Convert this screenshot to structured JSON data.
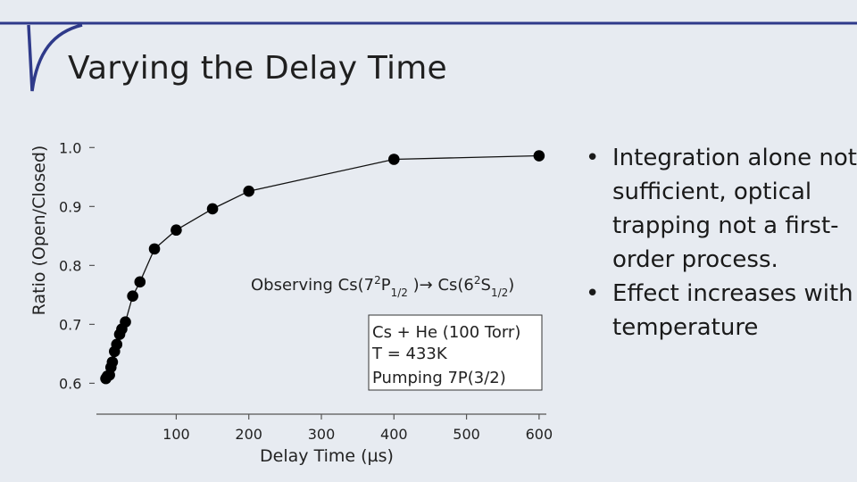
{
  "slide": {
    "title": "Varying the Delay Time",
    "accent_color": "#2f3a8a",
    "background": "#e7ebf1"
  },
  "bullets": [
    {
      "text": "Integration alone not sufficient, optical trapping not a first-order process."
    },
    {
      "text": "Effect increases with temperature"
    }
  ],
  "chart_data": {
    "type": "scatter",
    "title": "",
    "xlabel": "Delay Time (µs)",
    "ylabel": "Ratio (Open/Closed)",
    "xlim": [
      -10,
      610
    ],
    "ylim": [
      0.59,
      1.005
    ],
    "xticks": [
      100,
      200,
      300,
      400,
      500,
      600
    ],
    "yticks": [
      0.6,
      0.7,
      0.8,
      0.9,
      1.0
    ],
    "ytick_labels": [
      "0.6",
      "0.7",
      "0.8",
      "0.9",
      "1.0"
    ],
    "grid": false,
    "line_connected": true,
    "marker_color": "#000000",
    "series": [
      {
        "x": [
          3,
          5,
          8,
          10,
          12,
          15,
          18,
          22,
          25,
          30,
          40,
          50,
          70,
          100,
          150,
          200,
          400,
          600
        ],
        "y": [
          0.608,
          0.612,
          0.614,
          0.627,
          0.636,
          0.654,
          0.666,
          0.683,
          0.692,
          0.704,
          0.748,
          0.772,
          0.828,
          0.86,
          0.896,
          0.926,
          0.98,
          0.986
        ]
      }
    ],
    "annotations": {
      "observing_prefix": "Observing Cs(7",
      "sup1": "2",
      "p_label": "P",
      "sub1": "1/2",
      "arrow_part": " )→ Cs(6",
      "sup2": "2",
      "s_label": "S",
      "sub2": "1/2",
      "close_paren": ")"
    },
    "legend_box": [
      "Cs + He (100 Torr)",
      "T = 433K",
      "Pumping 7P(3/2)"
    ]
  }
}
